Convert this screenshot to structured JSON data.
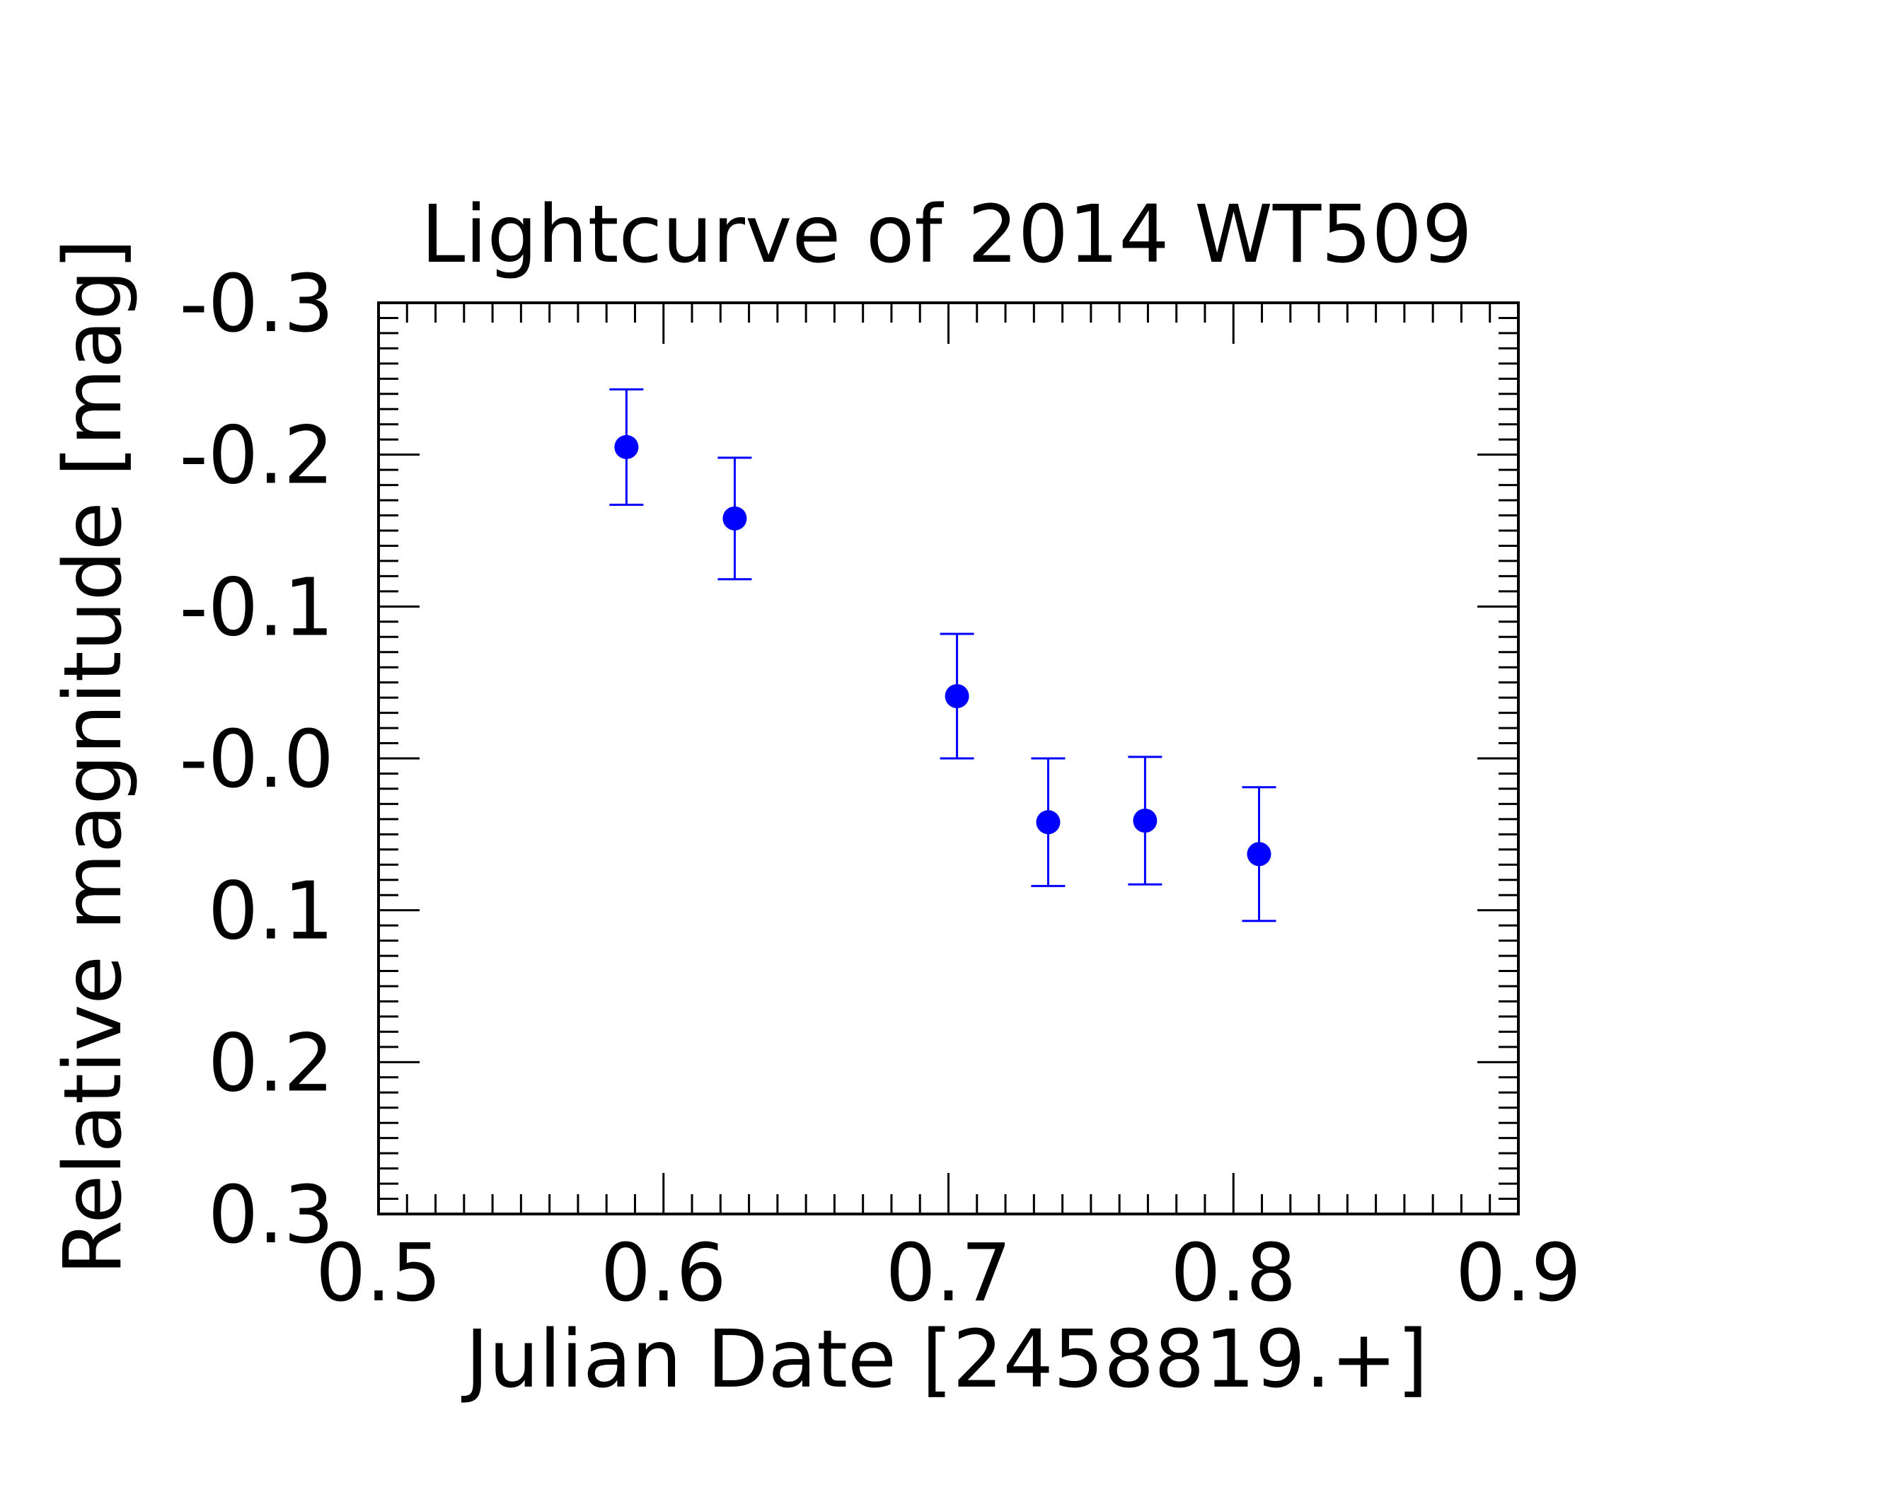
{
  "chart_data": {
    "type": "scatter",
    "title": "Lightcurve of 2014 WT509",
    "xlabel": "Julian Date [2458819.+]",
    "ylabel": "Relative magnitude [mag]",
    "xlim": [
      0.5,
      0.9
    ],
    "ylim": [
      0.3,
      -0.3
    ],
    "y_inverted": true,
    "xticks": [
      0.5,
      0.6,
      0.7,
      0.8,
      0.9
    ],
    "xtick_labels": [
      "0.5",
      "0.6",
      "0.7",
      "0.8",
      "0.9"
    ],
    "yticks": [
      -0.3,
      -0.2,
      -0.1,
      0.0,
      0.1,
      0.2,
      0.3
    ],
    "ytick_labels": [
      "-0.3",
      "-0.2",
      "-0.1",
      "-0.0",
      "0.1",
      "0.2",
      "0.3"
    ],
    "grid": false,
    "legend": "none",
    "marker_color": "#0000ff",
    "points": [
      {
        "x": 0.587,
        "y": -0.205,
        "err": 0.038
      },
      {
        "x": 0.625,
        "y": -0.158,
        "err": 0.04
      },
      {
        "x": 0.703,
        "y": -0.041,
        "err": 0.041
      },
      {
        "x": 0.735,
        "y": 0.042,
        "err": 0.042
      },
      {
        "x": 0.769,
        "y": 0.041,
        "err": 0.042
      },
      {
        "x": 0.809,
        "y": 0.063,
        "err": 0.044
      }
    ]
  }
}
